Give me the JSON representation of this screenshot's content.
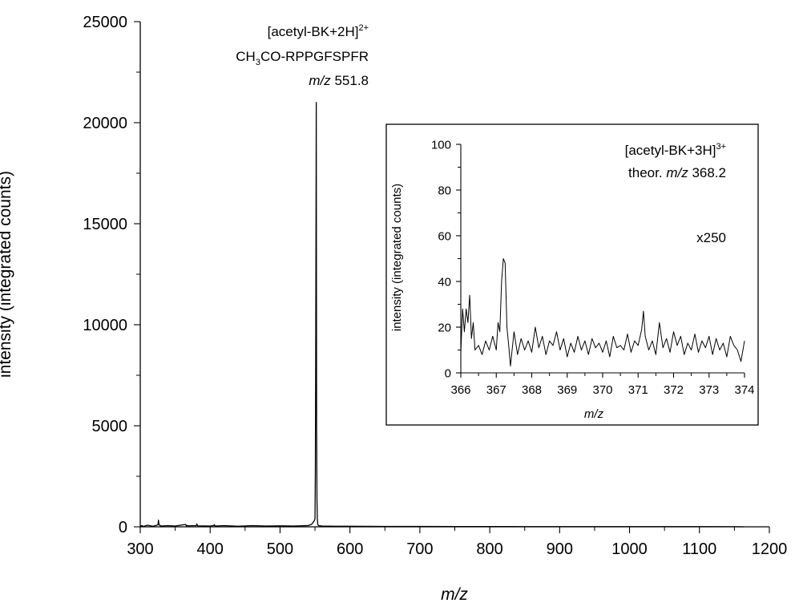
{
  "chart_data": [
    {
      "type": "line",
      "xlabel": "m/z",
      "ylabel": "intensity (integrated counts)",
      "xlim": [
        300,
        1200
      ],
      "ylim": [
        0,
        25000
      ],
      "xticks": [
        "300",
        "400",
        "500",
        "600",
        "700",
        "800",
        "900",
        "1000",
        "1100",
        "1200"
      ],
      "yticks": [
        "0",
        "5000",
        "10000",
        "15000",
        "20000",
        "25000"
      ],
      "annotation": {
        "line1": "[acetyl-BK+2H]",
        "line1_sup": "2+",
        "line2_a": "CH",
        "line2_sub": "3",
        "line2_b": "CO-RPPGFSPFR",
        "line3_italic": "m/z",
        "line3_value": "551.8"
      },
      "series": [
        {
          "x": [
            300,
            302,
            305,
            310,
            318,
            324,
            325.5,
            326,
            327,
            330,
            340,
            350,
            365,
            366,
            367,
            368,
            380,
            381,
            382,
            400,
            405,
            406,
            407,
            420,
            440,
            460,
            480,
            500,
            520,
            540,
            545,
            549,
            550,
            550.5,
            551,
            551.8,
            552.3,
            552.8,
            553.3,
            554,
            555,
            560,
            580,
            600,
            650,
            700,
            750,
            800,
            850,
            900,
            950,
            1000,
            1050,
            1100,
            1150,
            1163
          ],
          "y": [
            0,
            60,
            20,
            80,
            30,
            80,
            120,
            330,
            90,
            40,
            60,
            40,
            120,
            40,
            70,
            50,
            60,
            140,
            50,
            40,
            60,
            110,
            40,
            60,
            30,
            60,
            40,
            50,
            40,
            60,
            120,
            300,
            400,
            2800,
            8500,
            21000,
            5000,
            1400,
            400,
            120,
            60,
            40,
            30,
            30,
            20,
            20,
            15,
            15,
            10,
            10,
            10,
            8,
            8,
            8,
            5,
            0
          ]
        }
      ]
    },
    {
      "type": "line",
      "xlabel": "m/z",
      "ylabel": "intensity (integrated counts)",
      "xlim": [
        366,
        374
      ],
      "ylim": [
        0,
        100
      ],
      "xticks": [
        "366",
        "367",
        "368",
        "369",
        "370",
        "371",
        "372",
        "373",
        "374"
      ],
      "yticks": [
        "0",
        "20",
        "40",
        "60",
        "80",
        "100"
      ],
      "annotation": {
        "line1": "[acetyl-BK+3H]",
        "line1_sup": "3+",
        "line2_prefix": "theor.",
        "line2_italic": "m/z",
        "line2_value": "368.2",
        "scale": "x250"
      },
      "series": [
        {
          "x": [
            366.0,
            366.05,
            366.1,
            366.15,
            366.2,
            366.25,
            366.3,
            366.35,
            366.4,
            366.5,
            366.6,
            366.7,
            366.8,
            366.9,
            367.0,
            367.05,
            367.1,
            367.15,
            367.2,
            367.25,
            367.3,
            367.35,
            367.4,
            367.5,
            367.6,
            367.7,
            367.8,
            367.9,
            368.0,
            368.1,
            368.2,
            368.3,
            368.4,
            368.5,
            368.6,
            368.7,
            368.8,
            368.9,
            369.0,
            369.1,
            369.2,
            369.3,
            369.4,
            369.5,
            369.6,
            369.7,
            369.8,
            369.9,
            370.0,
            370.1,
            370.2,
            370.3,
            370.4,
            370.5,
            370.6,
            370.7,
            370.8,
            370.9,
            371.0,
            371.1,
            371.15,
            371.2,
            371.3,
            371.4,
            371.5,
            371.6,
            371.7,
            371.8,
            371.9,
            372.0,
            372.1,
            372.2,
            372.3,
            372.4,
            372.5,
            372.6,
            372.7,
            372.8,
            372.9,
            373.0,
            373.1,
            373.2,
            373.3,
            373.4,
            373.5,
            373.6,
            373.7,
            373.8,
            373.9,
            374.0
          ],
          "y": [
            9,
            28,
            18,
            28,
            22,
            34,
            15,
            22,
            10,
            12,
            8,
            14,
            10,
            16,
            10,
            22,
            18,
            40,
            50,
            48,
            20,
            12,
            3,
            18,
            8,
            15,
            10,
            14,
            9,
            20,
            11,
            16,
            8,
            14,
            12,
            18,
            10,
            15,
            7,
            13,
            9,
            16,
            10,
            14,
            8,
            15,
            11,
            13,
            9,
            14,
            7,
            16,
            11,
            12,
            10,
            17,
            9,
            14,
            12,
            19,
            27,
            16,
            10,
            14,
            8,
            22,
            11,
            15,
            9,
            18,
            12,
            16,
            8,
            13,
            10,
            17,
            9,
            14,
            11,
            16,
            8,
            15,
            10,
            13,
            7,
            16,
            12,
            10,
            5,
            14
          ]
        }
      ]
    }
  ]
}
